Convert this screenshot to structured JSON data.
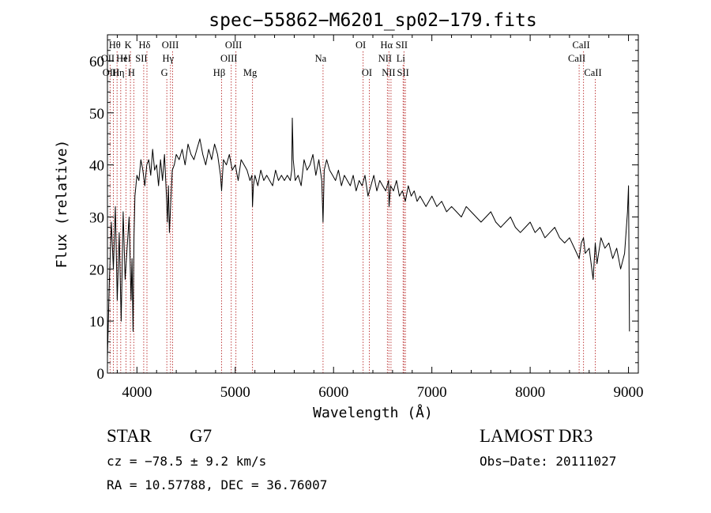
{
  "chart_data": {
    "type": "line",
    "title": "spec−55862−M6201_sp02−179.fits",
    "xlabel": "Wavelength (Å)",
    "ylabel": "Flux (relative)",
    "xlim": [
      3700,
      9100
    ],
    "ylim": [
      0,
      65
    ],
    "x_ticks": [
      4000,
      5000,
      6000,
      7000,
      8000,
      9000
    ],
    "y_ticks": [
      0,
      10,
      20,
      30,
      40,
      50,
      60
    ],
    "colors": {
      "spectrum": "#000000",
      "line_marker": "#c04040",
      "frame": "#000000"
    },
    "spectral_lines": [
      {
        "label": "Hθ",
        "wavelength": 3798,
        "row": 0
      },
      {
        "label": "OII",
        "wavelength": 3727,
        "row": 1
      },
      {
        "label": "OIII",
        "wavelength": 3760,
        "row": 2
      },
      {
        "label": "Hη",
        "wavelength": 3835,
        "row": 2
      },
      {
        "label": "H",
        "wavelength": 3889,
        "row": 1
      },
      {
        "label": "K",
        "wavelength": 3934,
        "row": 0
      },
      {
        "label": "HeI",
        "wavelength": 3889,
        "row": 1
      },
      {
        "label": "H",
        "wavelength": 3968,
        "row": 2
      },
      {
        "label": "SII",
        "wavelength": 4069,
        "row": 1
      },
      {
        "label": "Hδ",
        "wavelength": 4102,
        "row": 0
      },
      {
        "label": "OIII",
        "wavelength": 4363,
        "row": 0
      },
      {
        "label": "Hγ",
        "wavelength": 4341,
        "row": 1
      },
      {
        "label": "G",
        "wavelength": 4304,
        "row": 2
      },
      {
        "label": "Hβ",
        "wavelength": 4861,
        "row": 2
      },
      {
        "label": "OIII",
        "wavelength": 5007,
        "row": 0
      },
      {
        "label": "OIII",
        "wavelength": 4959,
        "row": 1
      },
      {
        "label": "Mg",
        "wavelength": 5175,
        "row": 2
      },
      {
        "label": "Na",
        "wavelength": 5893,
        "row": 1
      },
      {
        "label": "OI",
        "wavelength": 6300,
        "row": 0
      },
      {
        "label": "OI",
        "wavelength": 6364,
        "row": 2
      },
      {
        "label": "Hα",
        "wavelength": 6563,
        "row": 0
      },
      {
        "label": "NII",
        "wavelength": 6548,
        "row": 1
      },
      {
        "label": "NII",
        "wavelength": 6584,
        "row": 2
      },
      {
        "label": "SII",
        "wavelength": 6717,
        "row": 0
      },
      {
        "label": "Li",
        "wavelength": 6708,
        "row": 1
      },
      {
        "label": "SII",
        "wavelength": 6731,
        "row": 2
      },
      {
        "label": "CaII",
        "wavelength": 8542,
        "row": 0
      },
      {
        "label": "CaII",
        "wavelength": 8498,
        "row": 1
      },
      {
        "label": "CaII",
        "wavelength": 8662,
        "row": 2
      }
    ],
    "spectrum": {
      "x": [
        3700,
        3720,
        3740,
        3760,
        3780,
        3800,
        3820,
        3840,
        3860,
        3880,
        3900,
        3920,
        3940,
        3950,
        3960,
        3970,
        3980,
        4000,
        4020,
        4040,
        4060,
        4080,
        4100,
        4120,
        4140,
        4160,
        4180,
        4200,
        4220,
        4240,
        4260,
        4280,
        4300,
        4310,
        4320,
        4330,
        4340,
        4360,
        4380,
        4400,
        4430,
        4460,
        4490,
        4520,
        4550,
        4580,
        4610,
        4640,
        4670,
        4700,
        4730,
        4760,
        4790,
        4820,
        4850,
        4861,
        4880,
        4910,
        4940,
        4970,
        5000,
        5030,
        5060,
        5090,
        5120,
        5150,
        5170,
        5175,
        5185,
        5200,
        5230,
        5260,
        5290,
        5320,
        5350,
        5380,
        5410,
        5440,
        5470,
        5500,
        5530,
        5560,
        5575,
        5577,
        5580,
        5590,
        5610,
        5640,
        5670,
        5700,
        5730,
        5760,
        5790,
        5820,
        5850,
        5880,
        5893,
        5905,
        5930,
        5960,
        5990,
        6020,
        6050,
        6080,
        6110,
        6140,
        6170,
        6200,
        6230,
        6260,
        6290,
        6320,
        6350,
        6380,
        6410,
        6440,
        6470,
        6500,
        6530,
        6560,
        6565,
        6580,
        6610,
        6640,
        6670,
        6700,
        6730,
        6760,
        6790,
        6820,
        6850,
        6880,
        6910,
        6940,
        6970,
        7000,
        7050,
        7100,
        7150,
        7200,
        7250,
        7300,
        7350,
        7400,
        7450,
        7500,
        7550,
        7600,
        7650,
        7700,
        7750,
        7800,
        7850,
        7900,
        7950,
        8000,
        8050,
        8100,
        8150,
        8200,
        8250,
        8300,
        8350,
        8400,
        8450,
        8498,
        8520,
        8542,
        8560,
        8600,
        8640,
        8662,
        8680,
        8720,
        8760,
        8800,
        8840,
        8880,
        8920,
        8960,
        8990,
        9000,
        9010
      ],
      "y": [
        3,
        18,
        29,
        20,
        32,
        14,
        27,
        10,
        31,
        18,
        24,
        30,
        14,
        22,
        8,
        26,
        34,
        38,
        37,
        41,
        39,
        36,
        40,
        41,
        38,
        43,
        39,
        40,
        36,
        41,
        37,
        42,
        34,
        29,
        36,
        27,
        31,
        39,
        40,
        42,
        41,
        43,
        40,
        44,
        42,
        41,
        43,
        45,
        42,
        40,
        43,
        41,
        44,
        42,
        38,
        35,
        41,
        40,
        42,
        39,
        40,
        37,
        41,
        40,
        39,
        37,
        38,
        32,
        36,
        38,
        36,
        39,
        37,
        38,
        37,
        36,
        39,
        37,
        38,
        37,
        38,
        37,
        39,
        43,
        49,
        41,
        37,
        38,
        36,
        41,
        39,
        40,
        42,
        38,
        41,
        37,
        29,
        39,
        41,
        39,
        38,
        37,
        39,
        36,
        38,
        37,
        36,
        38,
        35,
        37,
        36,
        38,
        34,
        36,
        38,
        35,
        37,
        36,
        35,
        37,
        32,
        36,
        35,
        37,
        34,
        35,
        33,
        36,
        34,
        35,
        33,
        34,
        33,
        32,
        33,
        34,
        32,
        33,
        31,
        32,
        31,
        30,
        32,
        31,
        30,
        29,
        30,
        31,
        29,
        28,
        29,
        30,
        28,
        27,
        28,
        29,
        27,
        28,
        26,
        27,
        28,
        26,
        25,
        26,
        24,
        22,
        25,
        26,
        23,
        24,
        18,
        25,
        21,
        26,
        24,
        25,
        22,
        24,
        20,
        23,
        31,
        36,
        8
      ]
    }
  },
  "info": {
    "object_class": "STAR",
    "subclass": "G7",
    "survey": "LAMOST DR3",
    "cz": "cz = −78.5 ± 9.2 km/s",
    "obs_date": "Obs−Date: 20111027",
    "coords": "RA =  10.57788, DEC =  36.76007"
  }
}
